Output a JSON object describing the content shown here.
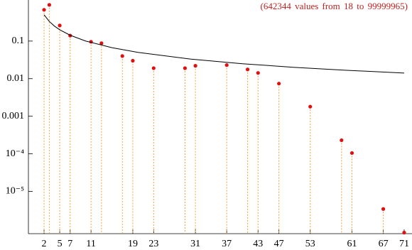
{
  "chart_data": {
    "type": "scatter",
    "annotation": "(642344 values from 18 to 99999965)",
    "log_y": true,
    "drop_lines": true,
    "xlim": [
      -1,
      72.5
    ],
    "ylim": [
      7.5e-07,
      1.24
    ],
    "xticks": [
      2,
      5,
      7,
      11,
      19,
      23,
      31,
      37,
      43,
      47,
      53,
      61,
      67,
      71
    ],
    "yticks": [
      0.1,
      0.01,
      0.001,
      {
        "value": 0.0001,
        "label": "10⁻⁴"
      },
      {
        "value": 1e-05,
        "label": "10⁻⁵"
      }
    ],
    "series": [
      {
        "type": "scatter",
        "color": "#e01010",
        "drop_color": "#f0a040",
        "x": [
          2,
          3,
          5,
          7,
          11,
          13,
          17,
          19,
          23,
          29,
          31,
          37,
          41,
          43,
          47,
          53,
          59,
          61,
          67,
          71
        ],
        "values": [
          0.68,
          0.92,
          0.26,
          0.14,
          0.096,
          0.088,
          0.04,
          0.03,
          0.019,
          0.019,
          0.022,
          0.023,
          0.0176,
          0.0142,
          0.0074,
          0.0018,
          0.00023,
          0.000105,
          3.4e-06,
          8e-07
        ]
      },
      {
        "type": "line",
        "color": "#000000",
        "x": [
          2,
          3,
          4,
          5,
          7,
          10,
          15,
          20,
          30,
          40,
          50,
          60,
          71
        ],
        "values": [
          0.5,
          0.333,
          0.25,
          0.2,
          0.143,
          0.1,
          0.0667,
          0.05,
          0.0333,
          0.025,
          0.02,
          0.0167,
          0.0141
        ]
      }
    ]
  }
}
